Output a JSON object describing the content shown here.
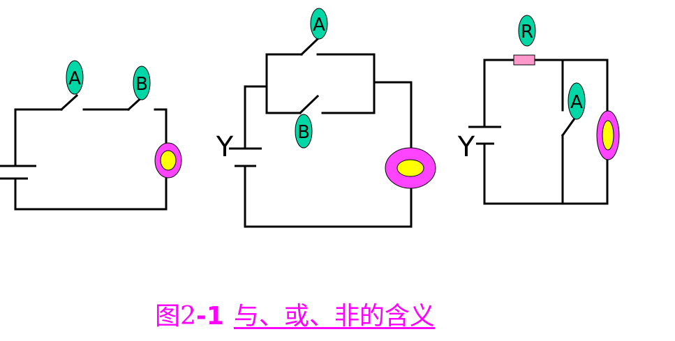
{
  "colors": {
    "wire": "#000000",
    "switch_tag": "#00d7a6",
    "lamp_ring": "#ff44ff",
    "lamp_core": "#ffff00",
    "resistor": "#ff99cc",
    "caption": "#ff00ff"
  },
  "circuit_and": {
    "switch_a": "A",
    "switch_b": "B"
  },
  "circuit_or": {
    "switch_a": "A",
    "switch_b": "B",
    "output": "Y"
  },
  "circuit_not": {
    "resistor": "R",
    "switch_a": "A",
    "output": "Y"
  },
  "caption": {
    "figure_word": "图2",
    "figure_number": "-1",
    "meaning": "与、或、非的含义"
  }
}
